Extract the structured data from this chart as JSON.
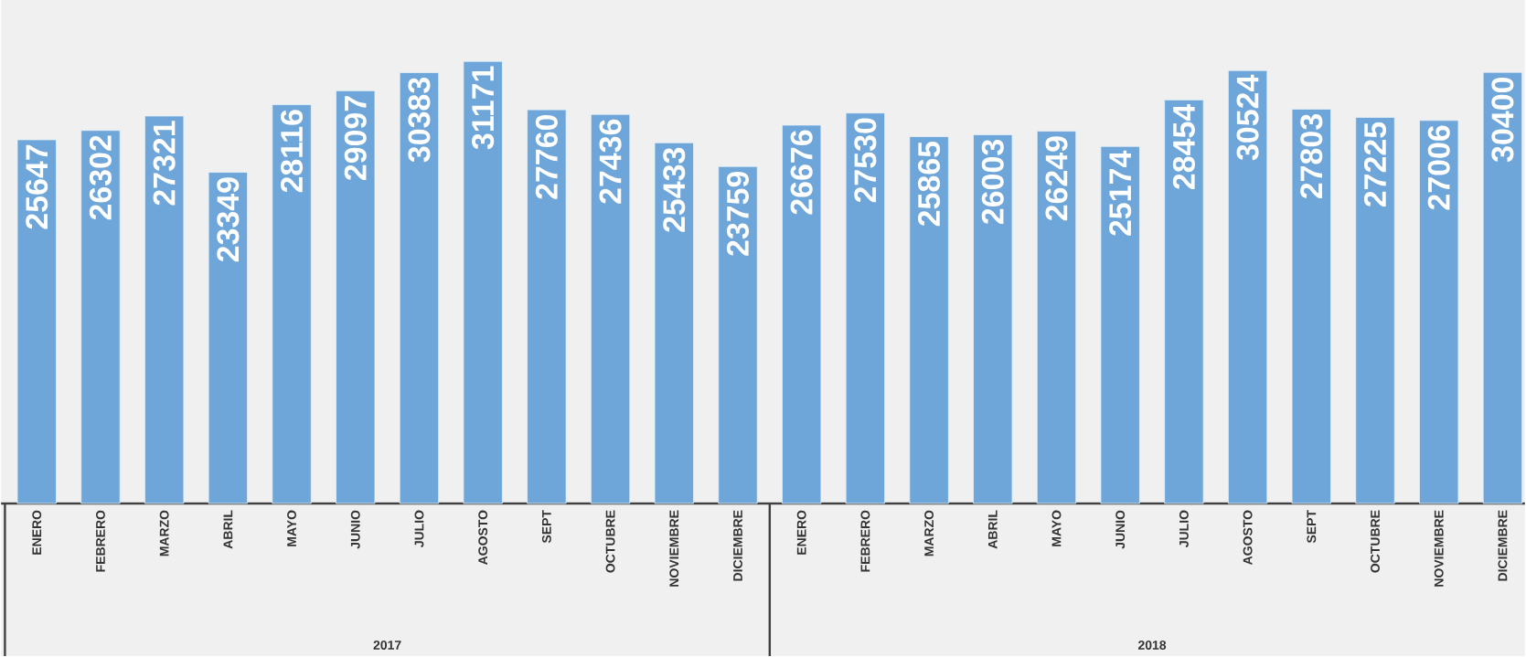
{
  "chart_data": {
    "type": "bar",
    "categories": [
      "ENERO",
      "FEBRERO",
      "MARZO",
      "ABRIL",
      "MAYO",
      "JUNIO",
      "JULIO",
      "AGOSTO",
      "SEPT",
      "OCTUBRE",
      "NOVIEMBRE",
      "DICIEMBRE",
      "ENERO",
      "FEBRERO",
      "MARZO",
      "ABRIL",
      "MAYO",
      "JUNIO",
      "JULIO",
      "AGOSTO",
      "SEPT",
      "OCTUBRE",
      "NOVIEMBRE",
      "DICIEMBRE"
    ],
    "values": [
      25647,
      26302,
      27321,
      23349,
      28116,
      29097,
      30383,
      31171,
      27760,
      27436,
      25433,
      23759,
      26676,
      27530,
      25865,
      26003,
      26249,
      25174,
      28454,
      30524,
      27803,
      27225,
      27006,
      30400
    ],
    "color": "#6fa6da",
    "data_labels": true,
    "ylim": [
      0,
      35500
    ],
    "tick_labels": "x",
    "annotations": [
      "2017",
      "2018"
    ]
  }
}
